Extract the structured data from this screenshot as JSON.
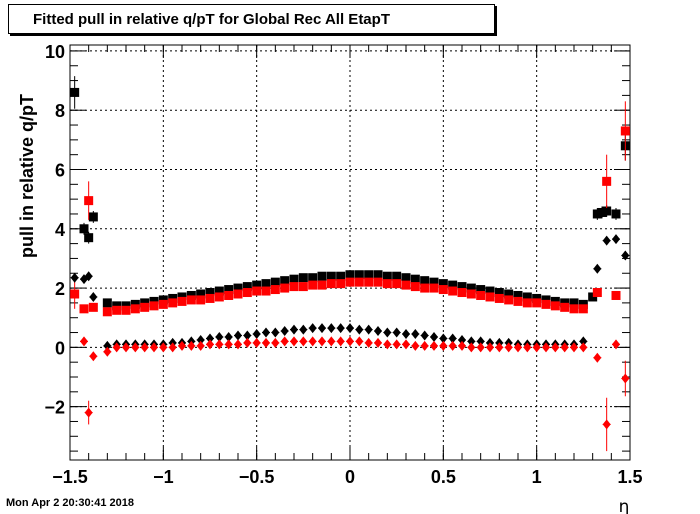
{
  "title": "Fitted pull in relative q/pT for Global Rec All EtapT",
  "timestamp": "Mon Apr  2 20:30:41 2018",
  "chart_data": {
    "type": "scatter",
    "title": "Fitted pull in relative q/pT for Global Rec All EtapT",
    "xlabel": "η",
    "ylabel": "pull in relative q/pT",
    "xlim": [
      -1.5,
      1.5
    ],
    "ylim": [
      -3.8,
      10.2
    ],
    "grid": true,
    "x_ticks": [
      "−1.5",
      "−1",
      "−0.5",
      "0",
      "0.5",
      "1",
      "1.5"
    ],
    "y_ticks": [
      "−2",
      "0",
      "2",
      "4",
      "6",
      "8",
      "10"
    ],
    "colors": {
      "black": "#000000",
      "red": "#ff0000"
    },
    "series": [
      {
        "marker": "square",
        "color": "#000000",
        "points": [
          [
            -1.475,
            8.6
          ],
          [
            -1.425,
            4.0
          ],
          [
            -1.4,
            3.7
          ],
          [
            -1.375,
            4.4
          ],
          [
            -1.3,
            1.5
          ],
          [
            -1.25,
            1.4
          ],
          [
            -1.2,
            1.4
          ],
          [
            -1.15,
            1.45
          ],
          [
            -1.1,
            1.5
          ],
          [
            -1.05,
            1.55
          ],
          [
            -1.0,
            1.6
          ],
          [
            -0.95,
            1.65
          ],
          [
            -0.9,
            1.7
          ],
          [
            -0.85,
            1.75
          ],
          [
            -0.8,
            1.8
          ],
          [
            -0.75,
            1.85
          ],
          [
            -0.7,
            1.9
          ],
          [
            -0.65,
            1.95
          ],
          [
            -0.6,
            2.0
          ],
          [
            -0.55,
            2.05
          ],
          [
            -0.5,
            2.1
          ],
          [
            -0.45,
            2.15
          ],
          [
            -0.4,
            2.2
          ],
          [
            -0.35,
            2.25
          ],
          [
            -0.3,
            2.3
          ],
          [
            -0.25,
            2.35
          ],
          [
            -0.2,
            2.35
          ],
          [
            -0.15,
            2.4
          ],
          [
            -0.1,
            2.4
          ],
          [
            -0.05,
            2.4
          ],
          [
            0.0,
            2.45
          ],
          [
            0.05,
            2.45
          ],
          [
            0.1,
            2.45
          ],
          [
            0.15,
            2.45
          ],
          [
            0.2,
            2.4
          ],
          [
            0.25,
            2.4
          ],
          [
            0.3,
            2.35
          ],
          [
            0.35,
            2.3
          ],
          [
            0.4,
            2.25
          ],
          [
            0.45,
            2.2
          ],
          [
            0.5,
            2.15
          ],
          [
            0.55,
            2.1
          ],
          [
            0.6,
            2.05
          ],
          [
            0.65,
            2.0
          ],
          [
            0.7,
            1.95
          ],
          [
            0.75,
            1.9
          ],
          [
            0.8,
            1.85
          ],
          [
            0.85,
            1.8
          ],
          [
            0.9,
            1.75
          ],
          [
            0.95,
            1.7
          ],
          [
            1.0,
            1.65
          ],
          [
            1.05,
            1.6
          ],
          [
            1.1,
            1.55
          ],
          [
            1.15,
            1.5
          ],
          [
            1.2,
            1.5
          ],
          [
            1.25,
            1.45
          ],
          [
            1.3,
            1.7
          ],
          [
            1.325,
            4.5
          ],
          [
            1.35,
            4.55
          ],
          [
            1.375,
            4.6
          ],
          [
            1.425,
            4.5
          ],
          [
            1.475,
            6.8
          ]
        ],
        "errors": [
          0.55,
          0.2,
          0.2,
          0.2,
          0.05,
          0.05,
          0.05,
          0.05,
          0.05,
          0.05,
          0.05,
          0.05,
          0.05,
          0.05,
          0.05,
          0.05,
          0.05,
          0.05,
          0.05,
          0.05,
          0.05,
          0.05,
          0.05,
          0.05,
          0.05,
          0.05,
          0.05,
          0.05,
          0.05,
          0.05,
          0.05,
          0.05,
          0.05,
          0.05,
          0.05,
          0.05,
          0.05,
          0.05,
          0.05,
          0.05,
          0.05,
          0.05,
          0.05,
          0.05,
          0.05,
          0.05,
          0.05,
          0.05,
          0.05,
          0.05,
          0.05,
          0.05,
          0.05,
          0.05,
          0.05,
          0.05,
          0.1,
          0.2,
          0.2,
          0.2,
          0.2,
          0.5
        ]
      },
      {
        "marker": "square",
        "color": "#ff0000",
        "points": [
          [
            -1.475,
            1.8
          ],
          [
            -1.425,
            1.3
          ],
          [
            -1.4,
            4.95
          ],
          [
            -1.375,
            1.35
          ],
          [
            -1.3,
            1.2
          ],
          [
            -1.25,
            1.25
          ],
          [
            -1.2,
            1.25
          ],
          [
            -1.15,
            1.3
          ],
          [
            -1.1,
            1.35
          ],
          [
            -1.05,
            1.4
          ],
          [
            -1.0,
            1.45
          ],
          [
            -0.95,
            1.5
          ],
          [
            -0.9,
            1.55
          ],
          [
            -0.85,
            1.6
          ],
          [
            -0.8,
            1.6
          ],
          [
            -0.75,
            1.65
          ],
          [
            -0.7,
            1.7
          ],
          [
            -0.65,
            1.75
          ],
          [
            -0.6,
            1.8
          ],
          [
            -0.55,
            1.85
          ],
          [
            -0.5,
            1.9
          ],
          [
            -0.45,
            1.9
          ],
          [
            -0.4,
            1.95
          ],
          [
            -0.35,
            2.0
          ],
          [
            -0.3,
            2.05
          ],
          [
            -0.25,
            2.05
          ],
          [
            -0.2,
            2.1
          ],
          [
            -0.15,
            2.1
          ],
          [
            -0.1,
            2.15
          ],
          [
            -0.05,
            2.15
          ],
          [
            0.0,
            2.2
          ],
          [
            0.05,
            2.2
          ],
          [
            0.1,
            2.2
          ],
          [
            0.15,
            2.2
          ],
          [
            0.2,
            2.15
          ],
          [
            0.25,
            2.15
          ],
          [
            0.3,
            2.1
          ],
          [
            0.35,
            2.05
          ],
          [
            0.4,
            2.0
          ],
          [
            0.45,
            2.0
          ],
          [
            0.5,
            1.95
          ],
          [
            0.55,
            1.9
          ],
          [
            0.6,
            1.85
          ],
          [
            0.65,
            1.8
          ],
          [
            0.7,
            1.75
          ],
          [
            0.75,
            1.7
          ],
          [
            0.8,
            1.65
          ],
          [
            0.85,
            1.6
          ],
          [
            0.9,
            1.55
          ],
          [
            0.95,
            1.5
          ],
          [
            1.0,
            1.5
          ],
          [
            1.05,
            1.45
          ],
          [
            1.1,
            1.4
          ],
          [
            1.15,
            1.35
          ],
          [
            1.2,
            1.3
          ],
          [
            1.25,
            1.3
          ],
          [
            1.325,
            1.85
          ],
          [
            1.375,
            5.6
          ],
          [
            1.425,
            1.75
          ],
          [
            1.475,
            7.3
          ]
        ],
        "errors": [
          0.5,
          0.1,
          0.65,
          0.05,
          0.05,
          0.05,
          0.05,
          0.05,
          0.05,
          0.05,
          0.05,
          0.05,
          0.05,
          0.05,
          0.05,
          0.05,
          0.05,
          0.05,
          0.05,
          0.05,
          0.05,
          0.05,
          0.05,
          0.05,
          0.05,
          0.05,
          0.05,
          0.05,
          0.05,
          0.05,
          0.05,
          0.05,
          0.05,
          0.05,
          0.05,
          0.05,
          0.05,
          0.05,
          0.05,
          0.05,
          0.05,
          0.05,
          0.05,
          0.05,
          0.05,
          0.05,
          0.05,
          0.05,
          0.05,
          0.05,
          0.05,
          0.05,
          0.05,
          0.05,
          0.05,
          0.05,
          0.1,
          0.9,
          0.1,
          1.0
        ]
      },
      {
        "marker": "diamond",
        "color": "#000000",
        "points": [
          [
            -1.475,
            2.35
          ],
          [
            -1.425,
            2.3
          ],
          [
            -1.4,
            2.4
          ],
          [
            -1.375,
            1.7
          ],
          [
            -1.3,
            0.05
          ],
          [
            -1.25,
            0.1
          ],
          [
            -1.2,
            0.1
          ],
          [
            -1.15,
            0.1
          ],
          [
            -1.1,
            0.1
          ],
          [
            -1.05,
            0.1
          ],
          [
            -1.0,
            0.1
          ],
          [
            -0.95,
            0.15
          ],
          [
            -0.9,
            0.15
          ],
          [
            -0.85,
            0.2
          ],
          [
            -0.8,
            0.25
          ],
          [
            -0.75,
            0.3
          ],
          [
            -0.7,
            0.35
          ],
          [
            -0.65,
            0.35
          ],
          [
            -0.6,
            0.4
          ],
          [
            -0.55,
            0.4
          ],
          [
            -0.5,
            0.45
          ],
          [
            -0.45,
            0.5
          ],
          [
            -0.4,
            0.5
          ],
          [
            -0.35,
            0.55
          ],
          [
            -0.3,
            0.6
          ],
          [
            -0.25,
            0.6
          ],
          [
            -0.2,
            0.65
          ],
          [
            -0.15,
            0.65
          ],
          [
            -0.1,
            0.65
          ],
          [
            -0.05,
            0.65
          ],
          [
            0.0,
            0.65
          ],
          [
            0.05,
            0.6
          ],
          [
            0.1,
            0.6
          ],
          [
            0.15,
            0.55
          ],
          [
            0.2,
            0.5
          ],
          [
            0.25,
            0.5
          ],
          [
            0.3,
            0.45
          ],
          [
            0.35,
            0.45
          ],
          [
            0.4,
            0.4
          ],
          [
            0.45,
            0.35
          ],
          [
            0.5,
            0.3
          ],
          [
            0.55,
            0.3
          ],
          [
            0.6,
            0.25
          ],
          [
            0.65,
            0.2
          ],
          [
            0.7,
            0.2
          ],
          [
            0.75,
            0.15
          ],
          [
            0.8,
            0.15
          ],
          [
            0.85,
            0.15
          ],
          [
            0.9,
            0.1
          ],
          [
            0.95,
            0.1
          ],
          [
            1.0,
            0.1
          ],
          [
            1.05,
            0.1
          ],
          [
            1.1,
            0.1
          ],
          [
            1.15,
            0.1
          ],
          [
            1.2,
            0.1
          ],
          [
            1.25,
            0.2
          ],
          [
            1.325,
            2.65
          ],
          [
            1.375,
            3.6
          ],
          [
            1.425,
            3.65
          ],
          [
            1.475,
            3.1
          ]
        ],
        "errors": [
          0.15,
          0.1,
          0.1,
          0.1,
          0.05,
          0.05,
          0.05,
          0.05,
          0.05,
          0.05,
          0.05,
          0.05,
          0.05,
          0.05,
          0.05,
          0.05,
          0.05,
          0.05,
          0.05,
          0.05,
          0.05,
          0.05,
          0.05,
          0.05,
          0.05,
          0.05,
          0.05,
          0.05,
          0.05,
          0.05,
          0.05,
          0.05,
          0.05,
          0.05,
          0.05,
          0.05,
          0.05,
          0.05,
          0.05,
          0.05,
          0.05,
          0.05,
          0.05,
          0.05,
          0.05,
          0.05,
          0.05,
          0.05,
          0.05,
          0.05,
          0.05,
          0.05,
          0.05,
          0.05,
          0.05,
          0.05,
          0.1,
          0.1,
          0.1,
          0.15
        ]
      },
      {
        "marker": "diamond",
        "color": "#ff0000",
        "points": [
          [
            -1.425,
            0.2
          ],
          [
            -1.4,
            -2.2
          ],
          [
            -1.375,
            -0.3
          ],
          [
            -1.3,
            -0.15
          ],
          [
            -1.25,
            0.0
          ],
          [
            -1.2,
            0.0
          ],
          [
            -1.15,
            0.0
          ],
          [
            -1.1,
            0.0
          ],
          [
            -1.05,
            0.0
          ],
          [
            -1.0,
            0.0
          ],
          [
            -0.95,
            0.0
          ],
          [
            -0.9,
            0.05
          ],
          [
            -0.85,
            0.05
          ],
          [
            -0.8,
            0.05
          ],
          [
            -0.75,
            0.1
          ],
          [
            -0.7,
            0.1
          ],
          [
            -0.65,
            0.1
          ],
          [
            -0.6,
            0.1
          ],
          [
            -0.55,
            0.15
          ],
          [
            -0.5,
            0.15
          ],
          [
            -0.45,
            0.15
          ],
          [
            -0.4,
            0.15
          ],
          [
            -0.35,
            0.2
          ],
          [
            -0.3,
            0.2
          ],
          [
            -0.25,
            0.2
          ],
          [
            -0.2,
            0.2
          ],
          [
            -0.15,
            0.2
          ],
          [
            -0.1,
            0.2
          ],
          [
            -0.05,
            0.2
          ],
          [
            0.0,
            0.2
          ],
          [
            0.05,
            0.2
          ],
          [
            0.1,
            0.15
          ],
          [
            0.15,
            0.15
          ],
          [
            0.2,
            0.1
          ],
          [
            0.25,
            0.1
          ],
          [
            0.3,
            0.1
          ],
          [
            0.35,
            0.05
          ],
          [
            0.4,
            0.05
          ],
          [
            0.45,
            0.05
          ],
          [
            0.5,
            0.05
          ],
          [
            0.55,
            0.05
          ],
          [
            0.6,
            0.05
          ],
          [
            0.65,
            0.0
          ],
          [
            0.7,
            0.0
          ],
          [
            0.75,
            0.0
          ],
          [
            0.8,
            0.0
          ],
          [
            0.85,
            0.0
          ],
          [
            0.9,
            0.0
          ],
          [
            0.95,
            0.0
          ],
          [
            1.0,
            0.0
          ],
          [
            1.05,
            0.0
          ],
          [
            1.1,
            0.0
          ],
          [
            1.15,
            0.0
          ],
          [
            1.2,
            0.0
          ],
          [
            1.25,
            0.0
          ],
          [
            1.325,
            -0.35
          ],
          [
            1.375,
            -2.6
          ],
          [
            1.425,
            0.1
          ],
          [
            1.475,
            -1.05
          ]
        ],
        "errors": [
          0.05,
          0.4,
          0.1,
          0.05,
          0.05,
          0.05,
          0.05,
          0.05,
          0.05,
          0.05,
          0.05,
          0.05,
          0.05,
          0.05,
          0.05,
          0.05,
          0.05,
          0.05,
          0.05,
          0.05,
          0.05,
          0.05,
          0.05,
          0.05,
          0.05,
          0.05,
          0.05,
          0.05,
          0.05,
          0.05,
          0.05,
          0.05,
          0.05,
          0.05,
          0.05,
          0.05,
          0.05,
          0.05,
          0.05,
          0.05,
          0.05,
          0.05,
          0.05,
          0.05,
          0.05,
          0.05,
          0.05,
          0.05,
          0.05,
          0.05,
          0.05,
          0.05,
          0.05,
          0.05,
          0.05,
          0.1,
          0.9,
          0.05,
          0.6
        ]
      }
    ]
  }
}
